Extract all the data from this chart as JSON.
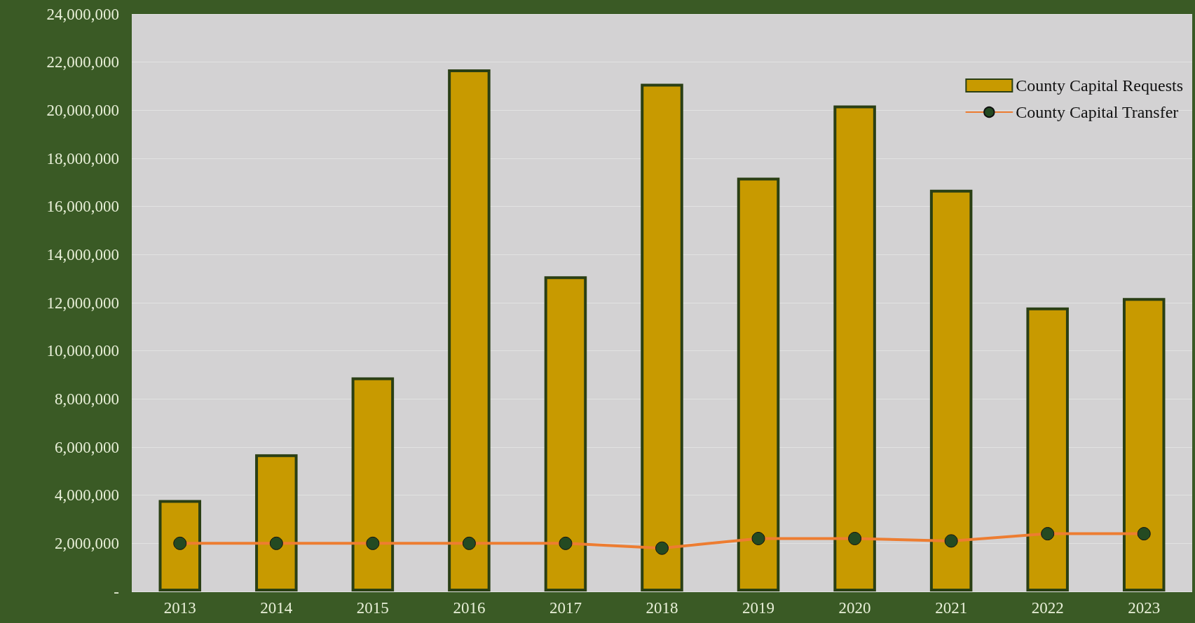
{
  "chart_data": {
    "type": "bar",
    "categories": [
      "2013",
      "2014",
      "2015",
      "2016",
      "2017",
      "2018",
      "2019",
      "2020",
      "2021",
      "2022",
      "2023"
    ],
    "series": [
      {
        "name": "County Capital Requests",
        "color": "#c89a00",
        "values": [
          3800000,
          5700000,
          8900000,
          21700000,
          13100000,
          21100000,
          17200000,
          20200000,
          16700000,
          11800000,
          12200000
        ]
      },
      {
        "name": "County Capital Transfer",
        "type": "line",
        "color": "#ed7d31",
        "values": [
          2000000,
          2000000,
          2000000,
          2000000,
          2000000,
          1800000,
          2200000,
          2200000,
          2100000,
          2400000,
          2400000
        ]
      }
    ],
    "ylim": [
      0,
      24000000
    ],
    "yticks": [
      {
        "value": 0,
        "label": "-"
      },
      {
        "value": 2000000,
        "label": "2,000,000"
      },
      {
        "value": 4000000,
        "label": "4,000,000"
      },
      {
        "value": 6000000,
        "label": "6,000,000"
      },
      {
        "value": 8000000,
        "label": "8,000,000"
      },
      {
        "value": 10000000,
        "label": "10,000,000"
      },
      {
        "value": 12000000,
        "label": "12,000,000"
      },
      {
        "value": 14000000,
        "label": "14,000,000"
      },
      {
        "value": 16000000,
        "label": "16,000,000"
      },
      {
        "value": 18000000,
        "label": "18,000,000"
      },
      {
        "value": 20000000,
        "label": "20,000,000"
      },
      {
        "value": 22000000,
        "label": "22,000,000"
      },
      {
        "value": 24000000,
        "label": "24,000,000"
      }
    ],
    "grid": "y",
    "legend": "top right",
    "marker": "circle",
    "line_style": "solid"
  }
}
